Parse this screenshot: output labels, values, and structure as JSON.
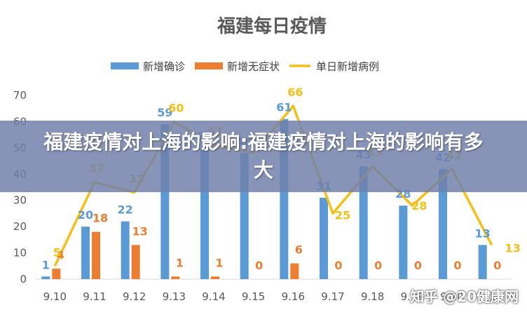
{
  "chart_data": {
    "type": "bar",
    "title": "福建每日疫情",
    "categories": [
      "9.10",
      "9.11",
      "9.12",
      "9.13",
      "9.14",
      "9.15",
      "9.16",
      "9.17",
      "9.18",
      "9.19",
      "9.20",
      "9.21"
    ],
    "series": [
      {
        "name": "新增确诊",
        "type": "bar",
        "color": "#5b9bd5",
        "values": [
          1,
          20,
          22,
          59,
          50,
          48,
          61,
          31,
          43,
          28,
          42,
          13
        ]
      },
      {
        "name": "新增无症状",
        "type": "bar",
        "color": "#ed7d31",
        "values": [
          4,
          18,
          13,
          1,
          1,
          0,
          6,
          0,
          0,
          0,
          0,
          0
        ]
      },
      {
        "name": "单日新增病例",
        "type": "line",
        "color": "#f5bf17",
        "values": [
          5,
          37,
          33,
          60,
          51,
          48,
          66,
          25,
          43,
          28,
          42,
          13
        ]
      }
    ],
    "ylim": [
      0,
      70
    ],
    "yticks": [
      0,
      10,
      20,
      30,
      40,
      50,
      60,
      70
    ],
    "legend": "top",
    "grid": false
  },
  "banner": {
    "text": "福建疫情对上海的影响:福建疫情对上海的影响有多大"
  },
  "watermark": {
    "text": "知乎 @20健康网"
  }
}
